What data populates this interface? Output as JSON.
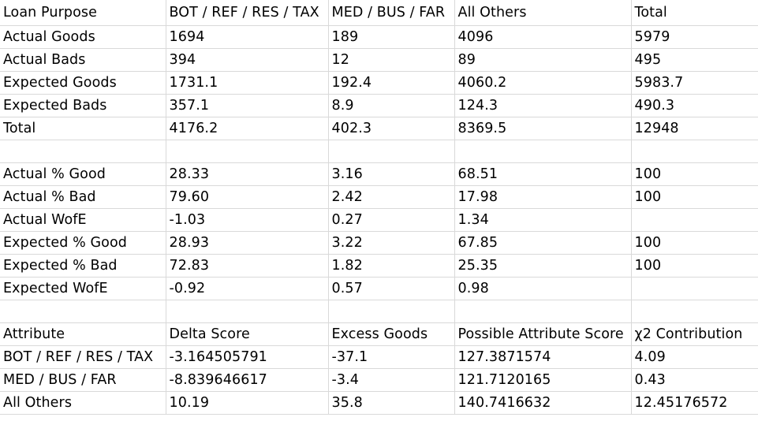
{
  "sheet": {
    "rows": [
      [
        "Loan Purpose",
        "BOT / REF / RES / TAX",
        "MED / BUS / FAR",
        "All Others",
        "Total"
      ],
      [
        "Actual Goods",
        "1694",
        "189",
        "4096",
        "5979"
      ],
      [
        "Actual Bads",
        "394",
        "12",
        "89",
        "495"
      ],
      [
        "Expected Goods",
        "1731.1",
        "192.4",
        "4060.2",
        "5983.7"
      ],
      [
        "Expected Bads",
        "357.1",
        "8.9",
        "124.3",
        "490.3"
      ],
      [
        "Total",
        "4176.2",
        "402.3",
        "8369.5",
        "12948"
      ],
      [
        "",
        "",
        "",
        "",
        ""
      ],
      [
        "Actual % Good",
        "28.33",
        "3.16",
        "68.51",
        "100"
      ],
      [
        "Actual % Bad",
        "79.60",
        "2.42",
        "17.98",
        "100"
      ],
      [
        "Actual WofE",
        "-1.03",
        "0.27",
        "1.34",
        ""
      ],
      [
        "Expected % Good",
        "28.93",
        "3.22",
        "67.85",
        "100"
      ],
      [
        "Expected % Bad",
        "72.83",
        "1.82",
        "25.35",
        "100"
      ],
      [
        "Expected WofE",
        "-0.92",
        "0.57",
        "0.98",
        ""
      ],
      [
        "",
        "",
        "",
        "",
        ""
      ],
      [
        "Attribute",
        "Delta Score",
        "Excess Goods",
        "Possible Attribute Score",
        "χ2 Contribution"
      ],
      [
        "BOT / REF / RES / TAX",
        "-3.164505791",
        "-37.1",
        "127.3871574",
        "4.09"
      ],
      [
        "MED / BUS / FAR",
        "-8.839646617",
        "-3.4",
        "121.7120165",
        "0.43"
      ],
      [
        "All Others",
        "10.19",
        "35.8",
        "140.7416632",
        "12.45176572"
      ]
    ]
  }
}
